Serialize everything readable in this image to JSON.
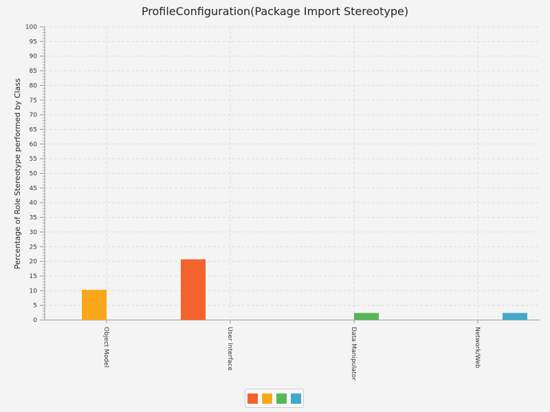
{
  "chart_data": {
    "type": "bar",
    "title": "ProfileConfiguration(Package Import Stereotype)",
    "ylabel": "Percentage of Role Stereotype performed by Class",
    "xlabel": "",
    "ylim": [
      0,
      100
    ],
    "ytick_step": 5,
    "grid": true,
    "legend_position": "bottom-center",
    "categories": [
      "Object Model",
      "User Interface",
      "Data Manipulator",
      "Network/Web"
    ],
    "series": [
      {
        "color": "#f3622d",
        "values": [
          0,
          20.7,
          0,
          0
        ]
      },
      {
        "color": "#fba71b",
        "values": [
          10.3,
          0,
          0,
          0
        ]
      },
      {
        "color": "#57b757",
        "values": [
          0,
          0,
          2.4,
          0
        ]
      },
      {
        "color": "#41a9c9",
        "values": [
          0,
          0,
          0,
          2.4
        ]
      }
    ]
  }
}
